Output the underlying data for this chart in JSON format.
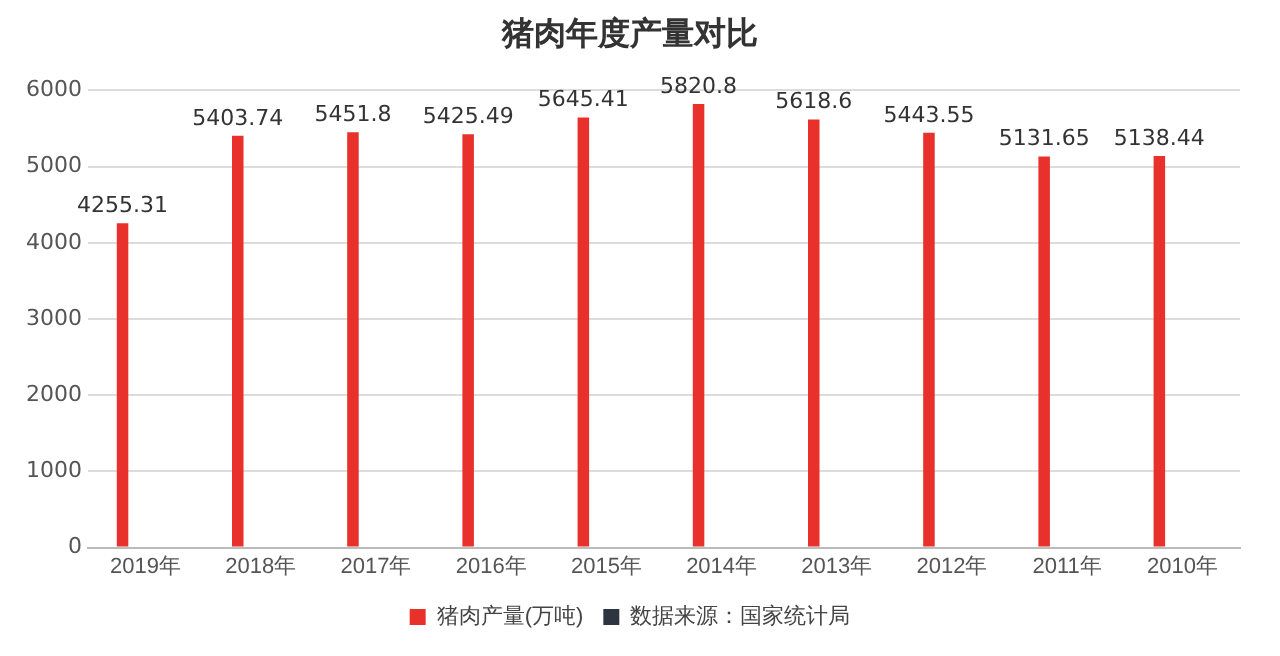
{
  "chart_data": {
    "type": "bar",
    "title": "猪肉年度产量对比",
    "categories": [
      "2019年",
      "2018年",
      "2017年",
      "2016年",
      "2015年",
      "2014年",
      "2013年",
      "2012年",
      "2011年",
      "2010年"
    ],
    "series": [
      {
        "name": "猪肉产量(万吨)",
        "color": "#e8312a",
        "values": [
          4255.31,
          5403.74,
          5451.8,
          5425.49,
          5645.41,
          5820.8,
          5618.6,
          5443.55,
          5131.65,
          5138.44
        ]
      },
      {
        "name": "数据来源：国家统计局",
        "color": "#2f3540",
        "values": [
          null,
          null,
          null,
          null,
          null,
          null,
          null,
          null,
          null,
          null
        ]
      }
    ],
    "ylim": [
      0,
      6000
    ],
    "yticks": [
      0,
      1000,
      2000,
      3000,
      4000,
      5000,
      6000
    ],
    "grid": "y",
    "legend": "bottom",
    "data_labels": true
  }
}
